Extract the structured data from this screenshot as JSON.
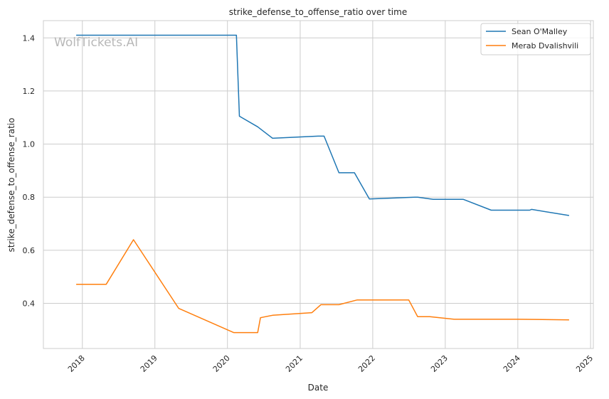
{
  "watermark": "WolfTickets.AI",
  "chart_data": {
    "type": "line",
    "title": "strike_defense_to_offense_ratio over time",
    "xlabel": "Date",
    "ylabel": "strike_defense_to_offense_ratio",
    "xlim": [
      "2017-06-19",
      "2025-01-15"
    ],
    "ylim": [
      0.23,
      1.465
    ],
    "x_ticks": [
      "2018",
      "2019",
      "2020",
      "2021",
      "2022",
      "2023",
      "2024",
      "2025"
    ],
    "y_ticks": [
      "0.4",
      "0.6",
      "0.8",
      "1.0",
      "1.2",
      "1.4"
    ],
    "grid": true,
    "legend_position": "top-right",
    "series": [
      {
        "name": "Sean O'Malley",
        "color": "#1f77b4",
        "points": [
          [
            "2017-12-01",
            1.41
          ],
          [
            "2018-06-01",
            1.41
          ],
          [
            "2019-06-01",
            1.41
          ],
          [
            "2020-02-15",
            1.41
          ],
          [
            "2020-03-01",
            1.105
          ],
          [
            "2020-06-01",
            1.065
          ],
          [
            "2020-08-15",
            1.022
          ],
          [
            "2021-04-01",
            1.03
          ],
          [
            "2021-05-01",
            1.03
          ],
          [
            "2021-07-15",
            0.892
          ],
          [
            "2021-10-01",
            0.892
          ],
          [
            "2021-12-15",
            0.793
          ],
          [
            "2022-08-01",
            0.8
          ],
          [
            "2022-08-15",
            0.8
          ],
          [
            "2022-11-01",
            0.792
          ],
          [
            "2023-04-01",
            0.792
          ],
          [
            "2023-08-20",
            0.751
          ],
          [
            "2024-03-01",
            0.751
          ],
          [
            "2024-03-10",
            0.754
          ],
          [
            "2024-09-15",
            0.731
          ]
        ]
      },
      {
        "name": "Merab Dvalishvili",
        "color": "#ff7f0e",
        "points": [
          [
            "2017-12-01",
            0.472
          ],
          [
            "2018-05-01",
            0.472
          ],
          [
            "2018-09-15",
            0.64
          ],
          [
            "2019-05-01",
            0.381
          ],
          [
            "2020-02-01",
            0.29
          ],
          [
            "2020-06-01",
            0.29
          ],
          [
            "2020-06-15",
            0.346
          ],
          [
            "2020-08-15",
            0.355
          ],
          [
            "2021-03-01",
            0.365
          ],
          [
            "2021-04-15",
            0.395
          ],
          [
            "2021-07-15",
            0.395
          ],
          [
            "2021-10-15",
            0.413
          ],
          [
            "2022-07-01",
            0.413
          ],
          [
            "2022-08-15",
            0.35
          ],
          [
            "2022-10-15",
            0.35
          ],
          [
            "2023-02-15",
            0.34
          ],
          [
            "2024-01-01",
            0.34
          ],
          [
            "2024-09-15",
            0.338
          ]
        ]
      }
    ]
  }
}
